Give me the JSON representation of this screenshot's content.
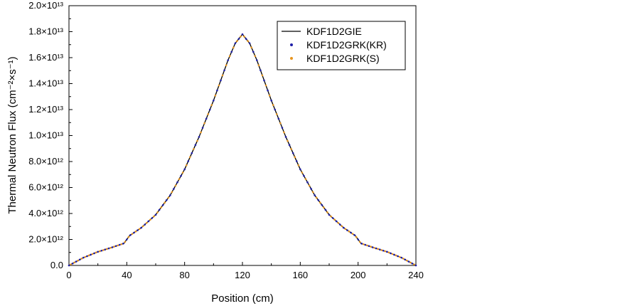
{
  "chart_data": {
    "type": "line",
    "xlabel": "Position (cm)",
    "ylabel": "Thermal Neutron Flux (cm⁻²×s⁻¹)",
    "xlim": [
      0,
      240
    ],
    "ylim": [
      0,
      20000000000000.0
    ],
    "x_ticks": [
      0,
      40,
      80,
      120,
      160,
      200,
      240
    ],
    "x_tick_labels": [
      "0",
      "40",
      "80",
      "120",
      "160",
      "200",
      "240"
    ],
    "y_ticks": [
      0,
      2000000000000.0,
      4000000000000.0,
      6000000000000.0,
      8000000000000.0,
      10000000000000.0,
      12000000000000.0,
      14000000000000.0,
      16000000000000.0,
      18000000000000.0,
      20000000000000.0
    ],
    "y_tick_labels": [
      "0.0",
      "2.0×10¹²",
      "4.0×10¹²",
      "6.0×10¹²",
      "8.0×10¹²",
      "1.0×10¹³",
      "1.2×10¹³",
      "1.4×10¹³",
      "1.6×10¹³",
      "1.8×10¹³",
      "2.0×10¹³"
    ],
    "grid": false,
    "legend_position": "top-right",
    "x": [
      0,
      10,
      20,
      30,
      38,
      40,
      42,
      50,
      60,
      70,
      80,
      90,
      100,
      110,
      115,
      120,
      125,
      130,
      140,
      150,
      160,
      170,
      180,
      190,
      198,
      200,
      202,
      210,
      220,
      230,
      240
    ],
    "series": [
      {
        "name": "KDF1D2GIE",
        "style": "line",
        "color": "#000000",
        "values": [
          0,
          600000000000.0,
          1050000000000.0,
          1400000000000.0,
          1700000000000.0,
          2000000000000.0,
          2300000000000.0,
          2900000000000.0,
          3900000000000.0,
          5400000000000.0,
          7400000000000.0,
          9900000000000.0,
          12700000000000.0,
          15800000000000.0,
          17100000000000.0,
          17800000000000.0,
          17100000000000.0,
          15800000000000.0,
          12700000000000.0,
          9900000000000.0,
          7400000000000.0,
          5400000000000.0,
          3900000000000.0,
          2900000000000.0,
          2300000000000.0,
          2000000000000.0,
          1700000000000.0,
          1400000000000.0,
          1050000000000.0,
          600000000000.0,
          0
        ]
      },
      {
        "name": "KDF1D2GRK(KR)",
        "style": "markers",
        "color": "#1f1fa8",
        "values": [
          0,
          600000000000.0,
          1050000000000.0,
          1400000000000.0,
          1700000000000.0,
          2000000000000.0,
          2300000000000.0,
          2900000000000.0,
          3900000000000.0,
          5400000000000.0,
          7400000000000.0,
          9900000000000.0,
          12700000000000.0,
          15800000000000.0,
          17100000000000.0,
          17800000000000.0,
          17100000000000.0,
          15800000000000.0,
          12700000000000.0,
          9900000000000.0,
          7400000000000.0,
          5400000000000.0,
          3900000000000.0,
          2900000000000.0,
          2300000000000.0,
          2000000000000.0,
          1700000000000.0,
          1400000000000.0,
          1050000000000.0,
          600000000000.0,
          0
        ]
      },
      {
        "name": "KDF1D2GRK(S)",
        "style": "markers",
        "color": "#e8951f",
        "values": [
          0,
          600000000000.0,
          1050000000000.0,
          1400000000000.0,
          1700000000000.0,
          2000000000000.0,
          2300000000000.0,
          2900000000000.0,
          3900000000000.0,
          5400000000000.0,
          7400000000000.0,
          9900000000000.0,
          12700000000000.0,
          15800000000000.0,
          17100000000000.0,
          17800000000000.0,
          17100000000000.0,
          15800000000000.0,
          12700000000000.0,
          9900000000000.0,
          7400000000000.0,
          5400000000000.0,
          3900000000000.0,
          2900000000000.0,
          2300000000000.0,
          2000000000000.0,
          1700000000000.0,
          1400000000000.0,
          1050000000000.0,
          600000000000.0,
          0
        ]
      }
    ]
  }
}
